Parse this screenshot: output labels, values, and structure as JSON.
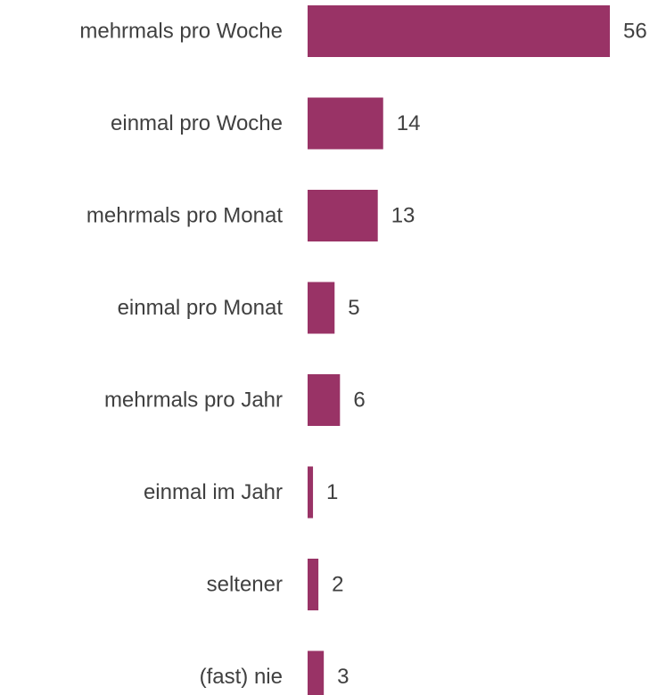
{
  "chart_data": {
    "type": "bar",
    "orientation": "horizontal",
    "categories": [
      "mehrmals pro Woche",
      "einmal pro Woche",
      "mehrmals pro Monat",
      "einmal pro Monat",
      "mehrmals pro Jahr",
      "einmal im Jahr",
      "seltener",
      "(fast) nie"
    ],
    "values": [
      56,
      14,
      13,
      5,
      6,
      1,
      2,
      3
    ],
    "title": "",
    "xlabel": "",
    "ylabel": "",
    "xlim": [
      0,
      56
    ],
    "grid": false,
    "legend": "none",
    "data_labels": true,
    "bar_color": "#993366",
    "text_color": "#404040"
  }
}
